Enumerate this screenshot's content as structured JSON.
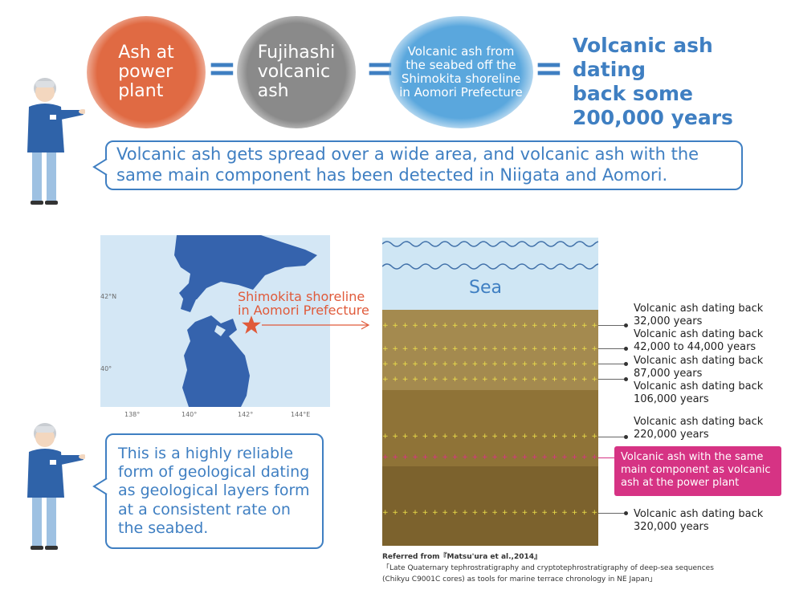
{
  "equation": {
    "item1": [
      "Ash at",
      "power",
      "plant"
    ],
    "item2": [
      "Fujihashi",
      "volcanic",
      "ash"
    ],
    "item3": [
      "Volcanic ash from",
      "the seabed off the",
      "Shimokita shoreline",
      "in Aomori Prefecture"
    ],
    "result": [
      "Volcanic ash dating",
      "back some",
      "200,000 years"
    ],
    "equals": "="
  },
  "bubble_top": {
    "line1": "Volcanic ash gets spread over a wide area, and volcanic ash with the",
    "line2": "same main component has been detected in Niigata and Aomori."
  },
  "bubble_bottom": [
    "This is a highly reliable",
    "form of geological dating",
    "as geological layers form",
    "at a consistent rate on",
    "the seabed."
  ],
  "map": {
    "lat_labels": [
      "42°N",
      "40°"
    ],
    "lon_labels": [
      "138°",
      "140°",
      "142°",
      "144°E"
    ],
    "location_label": [
      "Shimokita shoreline",
      "in Aomori Prefecture"
    ]
  },
  "strata": {
    "sea_label": "Sea",
    "annotations": [
      [
        "Volcanic ash dating back",
        "32,000 years"
      ],
      [
        "Volcanic ash dating back",
        "42,000 to 44,000 years"
      ],
      [
        "Volcanic ash dating back",
        "87,000 years"
      ],
      [
        "Volcanic ash dating back",
        "106,000 years"
      ],
      [
        "Volcanic ash dating back",
        "220,000 years"
      ],
      [
        "Volcanic ash dating back",
        "320,000 years"
      ]
    ],
    "highlight": [
      "Volcanic ash with the same",
      "main component as volcanic",
      "ash at the power plant"
    ]
  },
  "reference": {
    "line1": "Referred from『Matsu'ura et al.,2014』",
    "line2": "「Late Quaternary tephrostratigraphy and cryptotephrostratigraphy of deep-sea sequences",
    "line3": "(Chikyu C9001C cores) as tools for marine terrace chronology in NE Japan」"
  },
  "colors": {
    "accent_blue": "#3f7fc2",
    "ash_orange": "#e06a43",
    "ash_gray": "#8a8a8a",
    "ash_blue": "#5aa7dd",
    "highlight_pink": "#d63384",
    "marker_red": "#e05a3a"
  }
}
